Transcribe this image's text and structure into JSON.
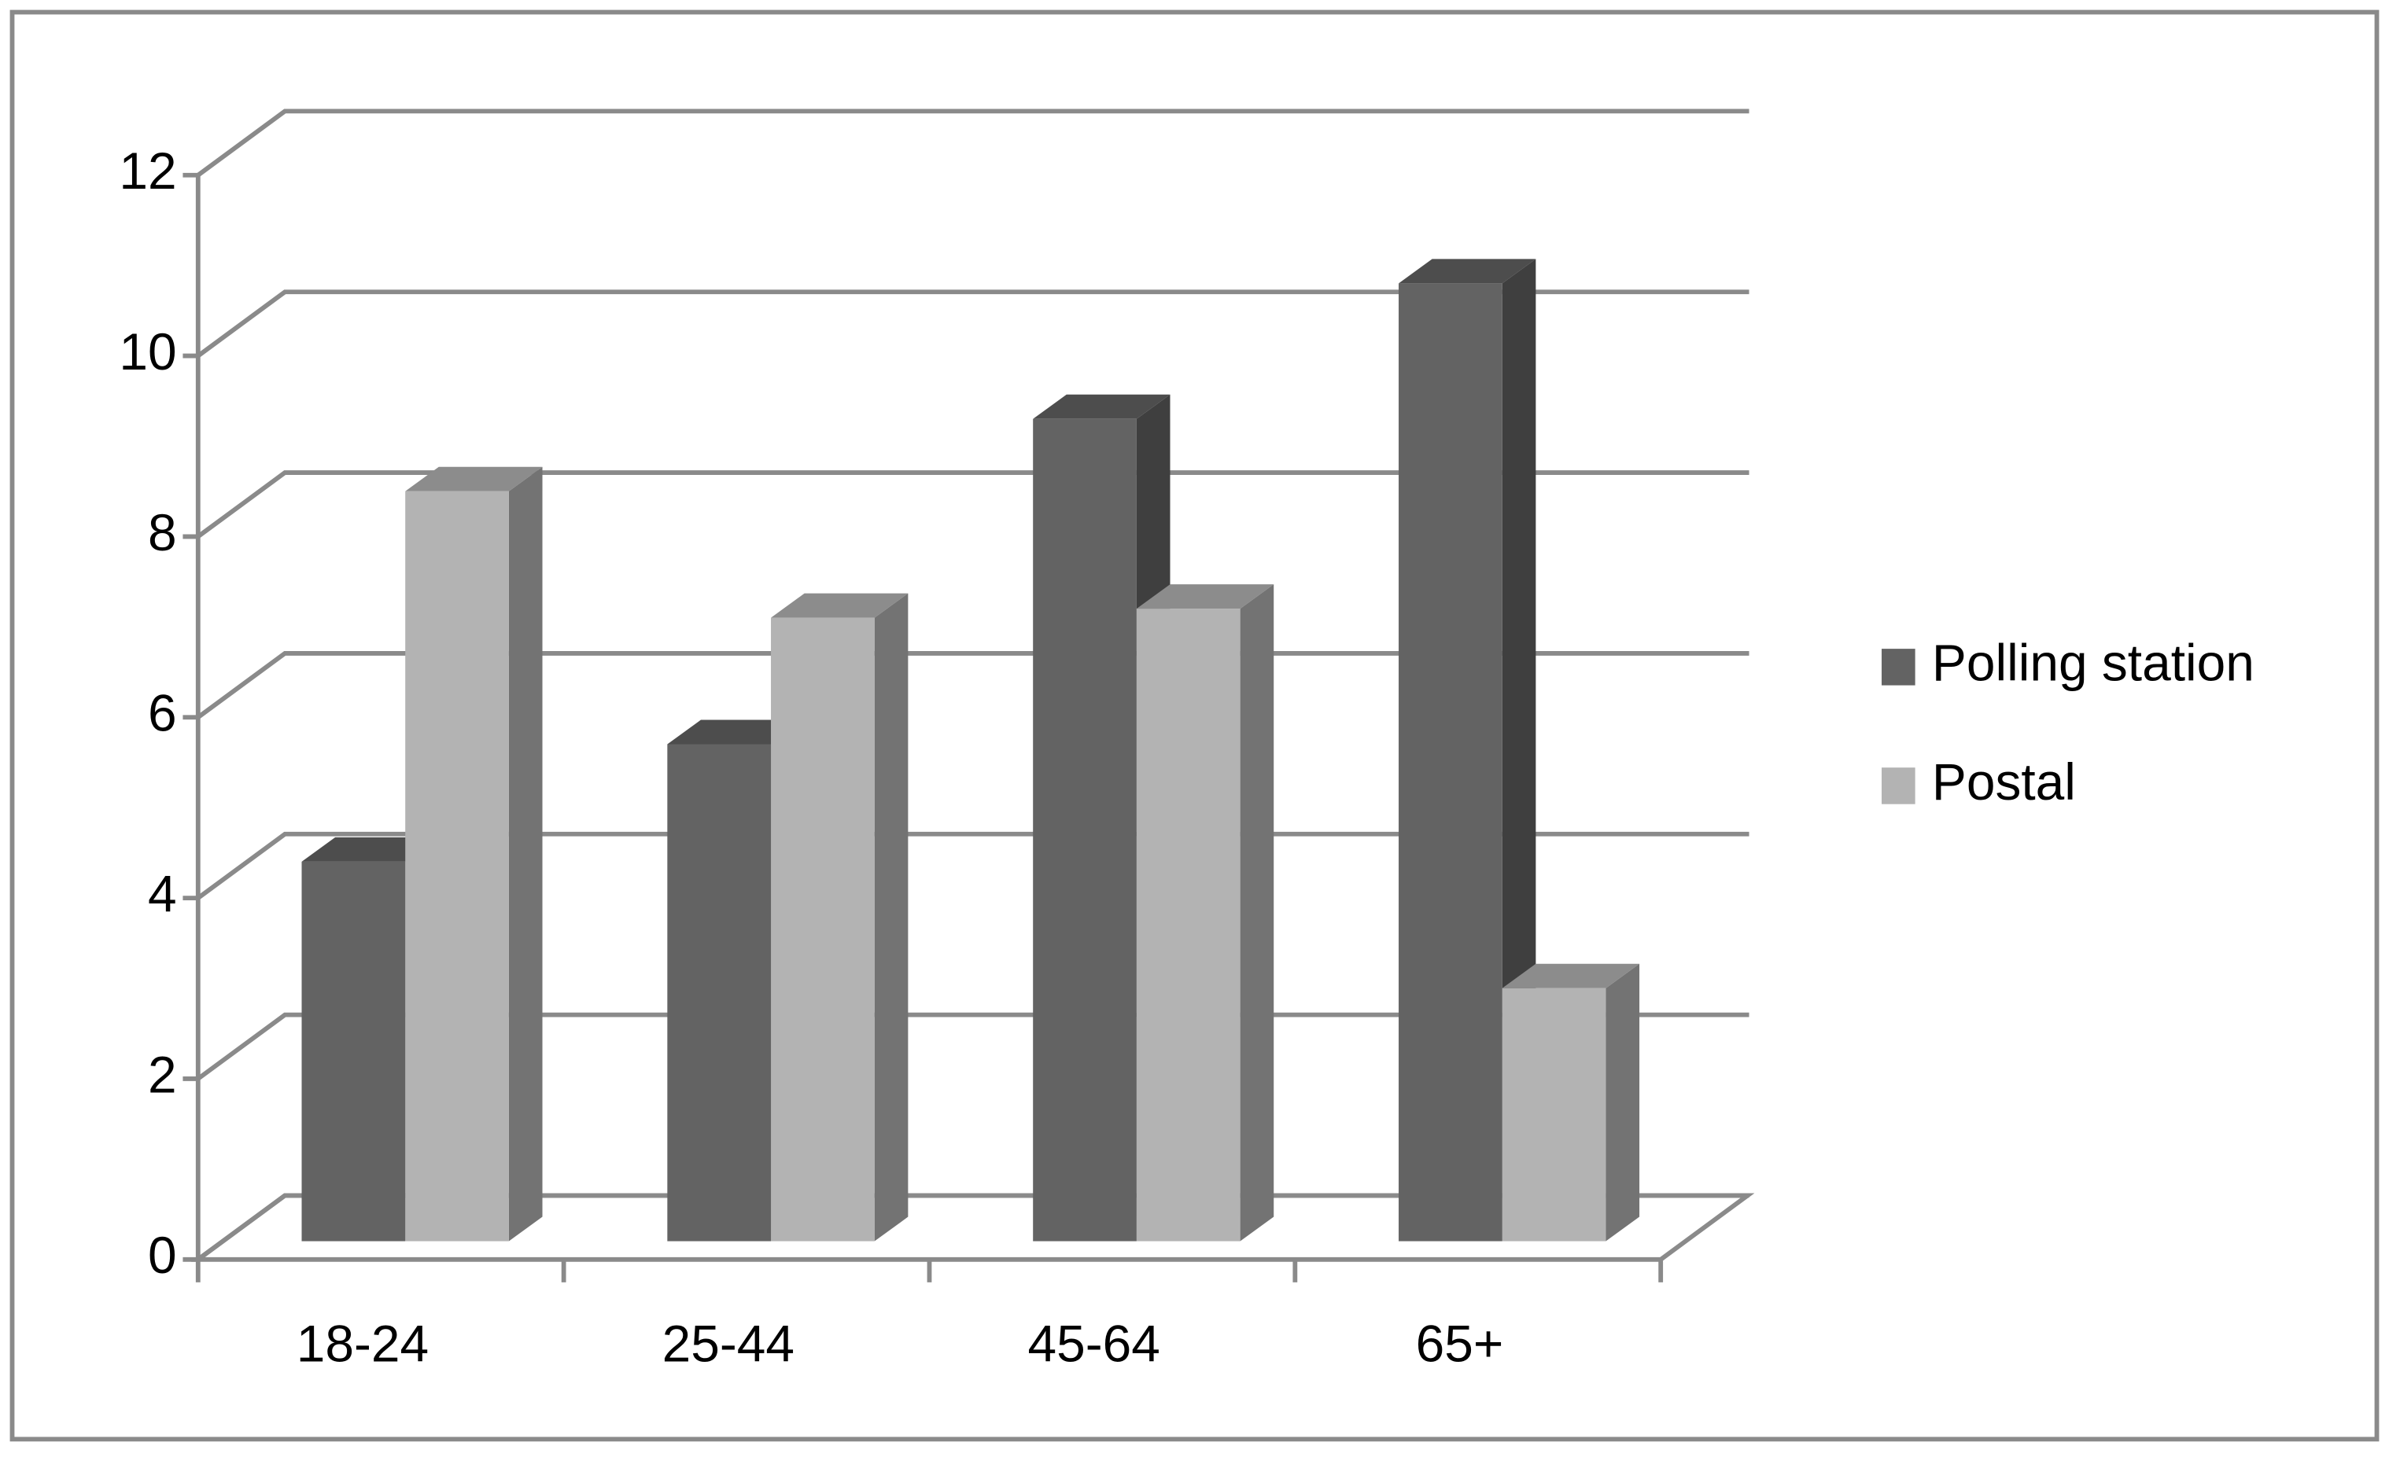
{
  "chart_data": {
    "type": "bar3d",
    "categories": [
      "18-24",
      "25-44",
      "45-64",
      "65+"
    ],
    "series": [
      {
        "name": "Polling station",
        "color": "#636363",
        "values": [
          4.2,
          5.5,
          9.1,
          10.6
        ]
      },
      {
        "name": "Postal",
        "color": "#b3b3b3",
        "values": [
          8.3,
          6.9,
          7.0,
          2.8
        ]
      }
    ],
    "ylim": [
      0,
      12
    ],
    "yticks": [
      0,
      2,
      4,
      6,
      8,
      10,
      12
    ],
    "grid": true,
    "legend": "right"
  }
}
